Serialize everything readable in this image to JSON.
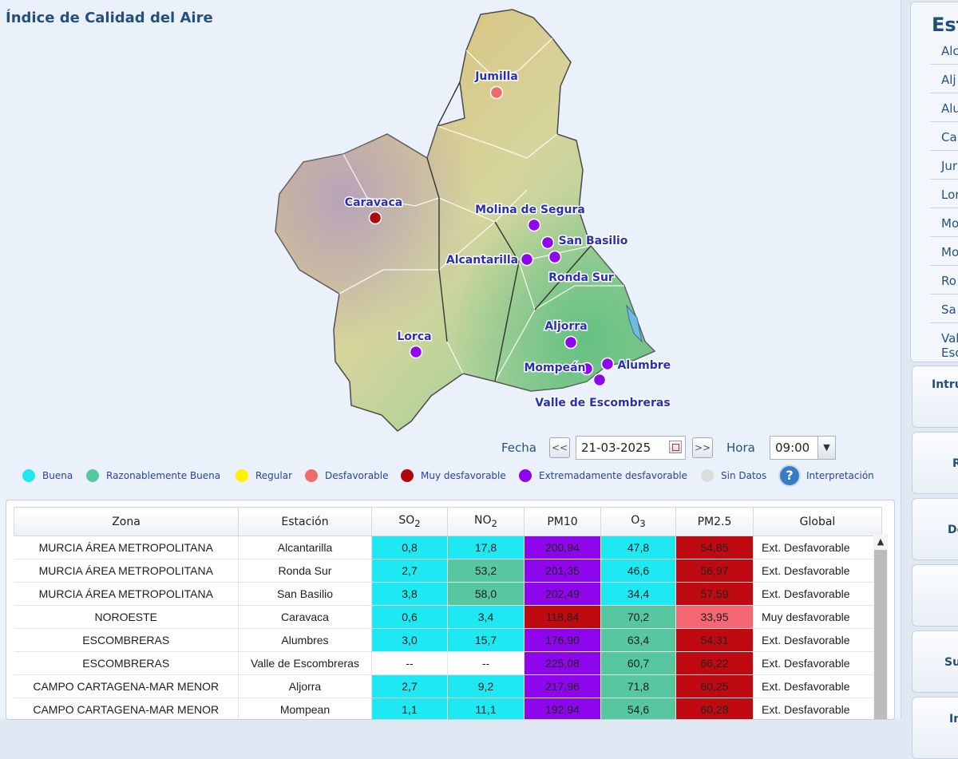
{
  "title": "Índice de Calidad del Aire",
  "map": {
    "stations": [
      {
        "name": "Jumilla",
        "color": "#f06b6b"
      },
      {
        "name": "Caravaca",
        "color": "#b0070f"
      },
      {
        "name": "Molina de Segura",
        "color": "#8e07ec"
      },
      {
        "name": "San Basilio",
        "color": "#8e07ec"
      },
      {
        "name": "Alcantarilla",
        "color": "#8e07ec"
      },
      {
        "name": "Ronda Sur",
        "color": "#8e07ec"
      },
      {
        "name": "Lorca",
        "color": "#8e07ec"
      },
      {
        "name": "Aljorra",
        "color": "#8e07ec"
      },
      {
        "name": "Mompeán",
        "color": "#8e07ec"
      },
      {
        "name": "Alumbres",
        "color": "#8e07ec"
      },
      {
        "name": "Valle de Escombreras",
        "color": "#8e07ec"
      }
    ]
  },
  "controls": {
    "fecha_label": "Fecha",
    "prev": "<<",
    "date_value": "21-03-2025",
    "next": ">>",
    "hora_label": "Hora",
    "hour_value": "09:00"
  },
  "legend": [
    {
      "label": "Buena",
      "color": "#1ee8f1"
    },
    {
      "label": "Razonablemente Buena",
      "color": "#56c79e"
    },
    {
      "label": "Regular",
      "color": "#fff200"
    },
    {
      "label": "Desfavorable",
      "color": "#f06b6b"
    },
    {
      "label": "Muy desfavorable",
      "color": "#b0070f"
    },
    {
      "label": "Extremadamente desfavorable",
      "color": "#8e07ec"
    },
    {
      "label": "Sin Datos",
      "color": "#dcdcdc"
    }
  ],
  "interpretacion_label": "Interpretación",
  "table": {
    "headers": {
      "zona": "Zona",
      "estacion": "Estación",
      "so2": "SO",
      "so2_sub": "2",
      "no2": "NO",
      "no2_sub": "2",
      "pm10": "PM10",
      "o3": "O",
      "o3_sub": "3",
      "pm25": "PM2.5",
      "global": "Global"
    },
    "rows": [
      {
        "zona": "MURCIA ÁREA METROPOLITANA",
        "estacion": "Alcantarilla",
        "so2": "0,8",
        "no2": "17,8",
        "pm10": "200,94",
        "o3": "47,8",
        "pm25": "54,85",
        "global": "Ext. Desfavorable",
        "c": [
          "cyan",
          "cyan",
          "purple",
          "cyan",
          "red"
        ]
      },
      {
        "zona": "MURCIA ÁREA METROPOLITANA",
        "estacion": "Ronda Sur",
        "so2": "2,7",
        "no2": "53,2",
        "pm10": "201,35",
        "o3": "46,6",
        "pm25": "56,97",
        "global": "Ext. Desfavorable",
        "c": [
          "cyan",
          "green",
          "purple",
          "cyan",
          "red"
        ]
      },
      {
        "zona": "MURCIA ÁREA METROPOLITANA",
        "estacion": "San Basilio",
        "so2": "3,8",
        "no2": "58,0",
        "pm10": "202,49",
        "o3": "34,4",
        "pm25": "57,59",
        "global": "Ext. Desfavorable",
        "c": [
          "cyan",
          "green",
          "purple",
          "cyan",
          "red"
        ]
      },
      {
        "zona": "NOROESTE",
        "estacion": "Caravaca",
        "so2": "0,6",
        "no2": "3,4",
        "pm10": "118,84",
        "o3": "70,2",
        "pm25": "33,95",
        "global": "Muy desfavorable",
        "c": [
          "cyan",
          "cyan",
          "red",
          "green",
          "pink"
        ]
      },
      {
        "zona": "ESCOMBRERAS",
        "estacion": "Alumbres",
        "so2": "3,0",
        "no2": "15,7",
        "pm10": "176,90",
        "o3": "63,4",
        "pm25": "54,31",
        "global": "Ext. Desfavorable",
        "c": [
          "cyan",
          "cyan",
          "purple",
          "green",
          "red"
        ]
      },
      {
        "zona": "ESCOMBRERAS",
        "estacion": "Valle de Escombreras",
        "so2": "--",
        "no2": "--",
        "pm10": "225,08",
        "o3": "60,7",
        "pm25": "66,22",
        "global": "Ext. Desfavorable",
        "c": [
          "none",
          "none",
          "purple",
          "green",
          "red"
        ]
      },
      {
        "zona": "CAMPO CARTAGENA-MAR MENOR",
        "estacion": "Aljorra",
        "so2": "2,7",
        "no2": "9,2",
        "pm10": "217,96",
        "o3": "71,8",
        "pm25": "60,25",
        "global": "Ext. Desfavorable",
        "c": [
          "cyan",
          "cyan",
          "purple",
          "green",
          "red"
        ]
      },
      {
        "zona": "CAMPO CARTAGENA-MAR MENOR",
        "estacion": "Mompean",
        "so2": "1,1",
        "no2": "11,1",
        "pm10": "192,94",
        "o3": "54,6",
        "pm25": "60,28",
        "global": "Ext. Desfavorable",
        "c": [
          "cyan",
          "cyan",
          "purple",
          "green",
          "red"
        ]
      }
    ]
  },
  "side": {
    "stations_title": "Est",
    "station_links": [
      "Alc",
      "Alj",
      "Alu",
      "Ca",
      "Jur",
      "Lor",
      "Mo",
      "Mo",
      "Ro",
      "Sa",
      "Val",
      "Esc"
    ],
    "cards": [
      "Intru",
      "R",
      "De",
      "",
      "Su",
      "In"
    ]
  }
}
